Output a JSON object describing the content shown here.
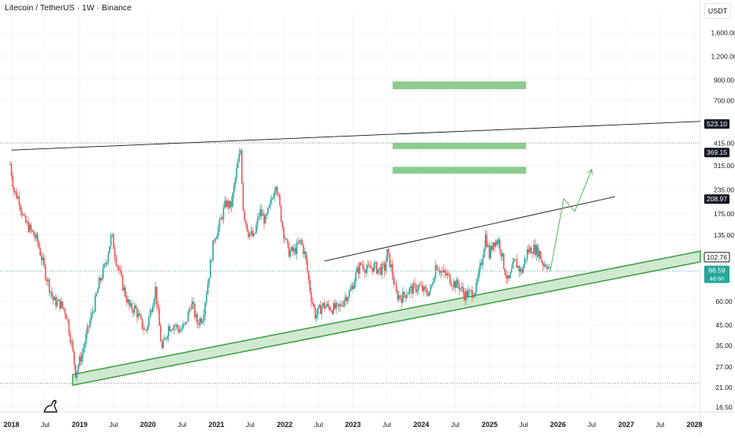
{
  "header": {
    "symbol_title": "Litecoin / TetherUS · 1W · Binance",
    "currency": "USDT"
  },
  "icons": {
    "brand": "tradingview-logo-icon"
  },
  "colors": {
    "up": "#26a69a",
    "down": "#ef5350",
    "channel": "#43a047",
    "channel_fill": "#c8e6c9",
    "zone": "#66bb6a",
    "trendline": "#131722",
    "projection": "#66bb6a",
    "grid": "#f0f3fa"
  },
  "chart_data": {
    "type": "candlestick",
    "y_scale": "log",
    "ylim": [
      15.5,
      2000
    ],
    "y_ticks": [
      16.5,
      21.0,
      27.0,
      35.0,
      45.0,
      60.0,
      86.59,
      102.76,
      135.0,
      175.0,
      235.0,
      315.0,
      415.0,
      700.0,
      900.0,
      1200.0,
      1600.0
    ],
    "y_tick_labels": [
      "16.50",
      "21.00",
      "27.00",
      "35.00",
      "45.00",
      "60.00",
      "86.59",
      "102.76",
      "135.00",
      "175.00",
      "235.00",
      "315.00",
      "415.00",
      "700.00",
      "900.00",
      "1,200.00",
      "1,600.00"
    ],
    "x_range": [
      "2017-11-01",
      "2028-02-01"
    ],
    "x_ticks": [
      {
        "date": "2018-01-01",
        "label": "2018"
      },
      {
        "date": "2018-07-01",
        "label": "Jul"
      },
      {
        "date": "2019-01-01",
        "label": "2019"
      },
      {
        "date": "2019-07-01",
        "label": "Jul"
      },
      {
        "date": "2020-01-01",
        "label": "2020"
      },
      {
        "date": "2020-07-01",
        "label": "Jul"
      },
      {
        "date": "2021-01-01",
        "label": "2021"
      },
      {
        "date": "2021-07-01",
        "label": "Jul"
      },
      {
        "date": "2022-01-01",
        "label": "2022"
      },
      {
        "date": "2022-07-01",
        "label": "Jul"
      },
      {
        "date": "2023-01-01",
        "label": "2023"
      },
      {
        "date": "2023-07-01",
        "label": "Jul"
      },
      {
        "date": "2024-01-01",
        "label": "2024"
      },
      {
        "date": "2024-07-01",
        "label": "Jul"
      },
      {
        "date": "2025-01-01",
        "label": "2025"
      },
      {
        "date": "2025-07-01",
        "label": "Jul"
      },
      {
        "date": "2026-01-01",
        "label": "2026"
      },
      {
        "date": "2026-07-01",
        "label": "Jul"
      },
      {
        "date": "2027-01-01",
        "label": "2027"
      },
      {
        "date": "2027-07-01",
        "label": "Jul"
      },
      {
        "date": "2028-01-01",
        "label": "2028"
      }
    ],
    "price_path": [
      [
        "2017-12-25",
        320
      ],
      [
        "2018-01-15",
        230
      ],
      [
        "2018-02-10",
        210
      ],
      [
        "2018-03-10",
        160
      ],
      [
        "2018-04-20",
        140
      ],
      [
        "2018-05-20",
        125
      ],
      [
        "2018-07-01",
        85
      ],
      [
        "2018-08-15",
        60
      ],
      [
        "2018-09-20",
        58
      ],
      [
        "2018-10-20",
        52
      ],
      [
        "2018-11-20",
        35
      ],
      [
        "2018-12-10",
        25
      ],
      [
        "2019-01-15",
        32
      ],
      [
        "2019-02-20",
        45
      ],
      [
        "2019-03-25",
        60
      ],
      [
        "2019-04-15",
        75
      ],
      [
        "2019-05-20",
        95
      ],
      [
        "2019-06-20",
        135
      ],
      [
        "2019-07-15",
        100
      ],
      [
        "2019-08-20",
        72
      ],
      [
        "2019-09-25",
        55
      ],
      [
        "2019-10-25",
        55
      ],
      [
        "2019-11-25",
        46
      ],
      [
        "2019-12-20",
        41
      ],
      [
        "2020-02-10",
        70
      ],
      [
        "2020-03-15",
        33
      ],
      [
        "2020-04-20",
        44
      ],
      [
        "2020-05-20",
        45
      ],
      [
        "2020-06-20",
        42
      ],
      [
        "2020-07-20",
        45
      ],
      [
        "2020-08-20",
        60
      ],
      [
        "2020-09-20",
        46
      ],
      [
        "2020-10-20",
        50
      ],
      [
        "2020-11-20",
        80
      ],
      [
        "2020-12-20",
        130
      ],
      [
        "2021-01-15",
        150
      ],
      [
        "2021-02-20",
        200
      ],
      [
        "2021-03-20",
        190
      ],
      [
        "2021-04-20",
        300
      ],
      [
        "2021-05-10",
        380
      ],
      [
        "2021-05-25",
        180
      ],
      [
        "2021-06-20",
        140
      ],
      [
        "2021-07-20",
        130
      ],
      [
        "2021-08-20",
        180
      ],
      [
        "2021-09-20",
        160
      ],
      [
        "2021-10-20",
        200
      ],
      [
        "2021-11-15",
        260
      ],
      [
        "2021-12-20",
        150
      ],
      [
        "2022-01-20",
        110
      ],
      [
        "2022-02-20",
        110
      ],
      [
        "2022-03-28",
        125
      ],
      [
        "2022-04-20",
        105
      ],
      [
        "2022-05-20",
        65
      ],
      [
        "2022-06-15",
        50
      ],
      [
        "2022-07-20",
        57
      ],
      [
        "2022-08-20",
        56
      ],
      [
        "2022-09-20",
        55
      ],
      [
        "2022-10-20",
        55
      ],
      [
        "2022-11-15",
        62
      ],
      [
        "2022-12-20",
        68
      ],
      [
        "2023-01-20",
        85
      ],
      [
        "2023-02-15",
        95
      ],
      [
        "2023-03-20",
        88
      ],
      [
        "2023-04-20",
        92
      ],
      [
        "2023-05-20",
        88
      ],
      [
        "2023-06-20",
        90
      ],
      [
        "2023-07-03",
        108
      ],
      [
        "2023-07-25",
        90
      ],
      [
        "2023-08-20",
        65
      ],
      [
        "2023-09-20",
        63
      ],
      [
        "2023-10-20",
        68
      ],
      [
        "2023-11-20",
        70
      ],
      [
        "2023-12-20",
        72
      ],
      [
        "2024-01-20",
        67
      ],
      [
        "2024-02-20",
        68
      ],
      [
        "2024-03-20",
        95
      ],
      [
        "2024-04-20",
        85
      ],
      [
        "2024-05-20",
        82
      ],
      [
        "2024-06-20",
        75
      ],
      [
        "2024-07-20",
        73
      ],
      [
        "2024-08-20",
        65
      ],
      [
        "2024-09-20",
        66
      ],
      [
        "2024-10-20",
        70
      ],
      [
        "2024-11-20",
        100
      ],
      [
        "2024-12-10",
        135
      ],
      [
        "2024-12-30",
        105
      ],
      [
        "2025-01-20",
        125
      ],
      [
        "2025-02-20",
        125
      ],
      [
        "2025-03-20",
        90
      ],
      [
        "2025-04-10",
        75
      ],
      [
        "2025-05-15",
        98
      ],
      [
        "2025-06-20",
        85
      ],
      [
        "2025-07-20",
        110
      ],
      [
        "2025-08-20",
        115
      ],
      [
        "2025-09-20",
        110
      ],
      [
        "2025-10-10",
        95
      ],
      [
        "2025-11-01",
        95
      ],
      [
        "2025-11-20",
        86.59
      ]
    ],
    "annotations": {
      "ascending_channel": {
        "from": [
          "2018-11-25",
          21.5
        ],
        "to": [
          "2028-02-01",
          97
        ],
        "band_ratio": 1.14
      },
      "resistance_line": {
        "from": [
          "2018-01-01",
          380
        ],
        "to": [
          "2028-02-01",
          540
        ],
        "label": "523.10"
      },
      "upper_trendline": {
        "from": [
          "2022-08-01",
          98
        ],
        "to": [
          "2026-11-01",
          215
        ],
        "label": "208.97"
      },
      "zones": [
        {
          "from": "2023-08-01",
          "to": "2025-07-15",
          "low": 800,
          "high": 880
        },
        {
          "from": "2023-08-01",
          "to": "2025-07-15",
          "low": 385,
          "high": 415
        },
        {
          "from": "2023-08-01",
          "to": "2025-07-15",
          "low": 285,
          "high": 310
        }
      ],
      "projection": [
        [
          "2025-11-20",
          86
        ],
        [
          "2026-02-01",
          210
        ],
        [
          "2026-04-01",
          180
        ],
        [
          "2026-07-01",
          300
        ]
      ],
      "level_lines": [
        {
          "value": 415,
          "label": "415.00"
        },
        {
          "value": 22.0,
          "label": ""
        }
      ],
      "price_labels": [
        {
          "value": 523.1,
          "text": "523.10",
          "style": "dark"
        },
        {
          "value": 369.15,
          "text": "369.15",
          "style": "dark"
        },
        {
          "value": 208.97,
          "text": "208.97",
          "style": "dark"
        },
        {
          "value": 102.76,
          "text": "102.76",
          "style": "dark-outline"
        },
        {
          "value": 86.59,
          "text": "86.59",
          "sub": "4d 6h",
          "style": "green"
        }
      ]
    }
  }
}
